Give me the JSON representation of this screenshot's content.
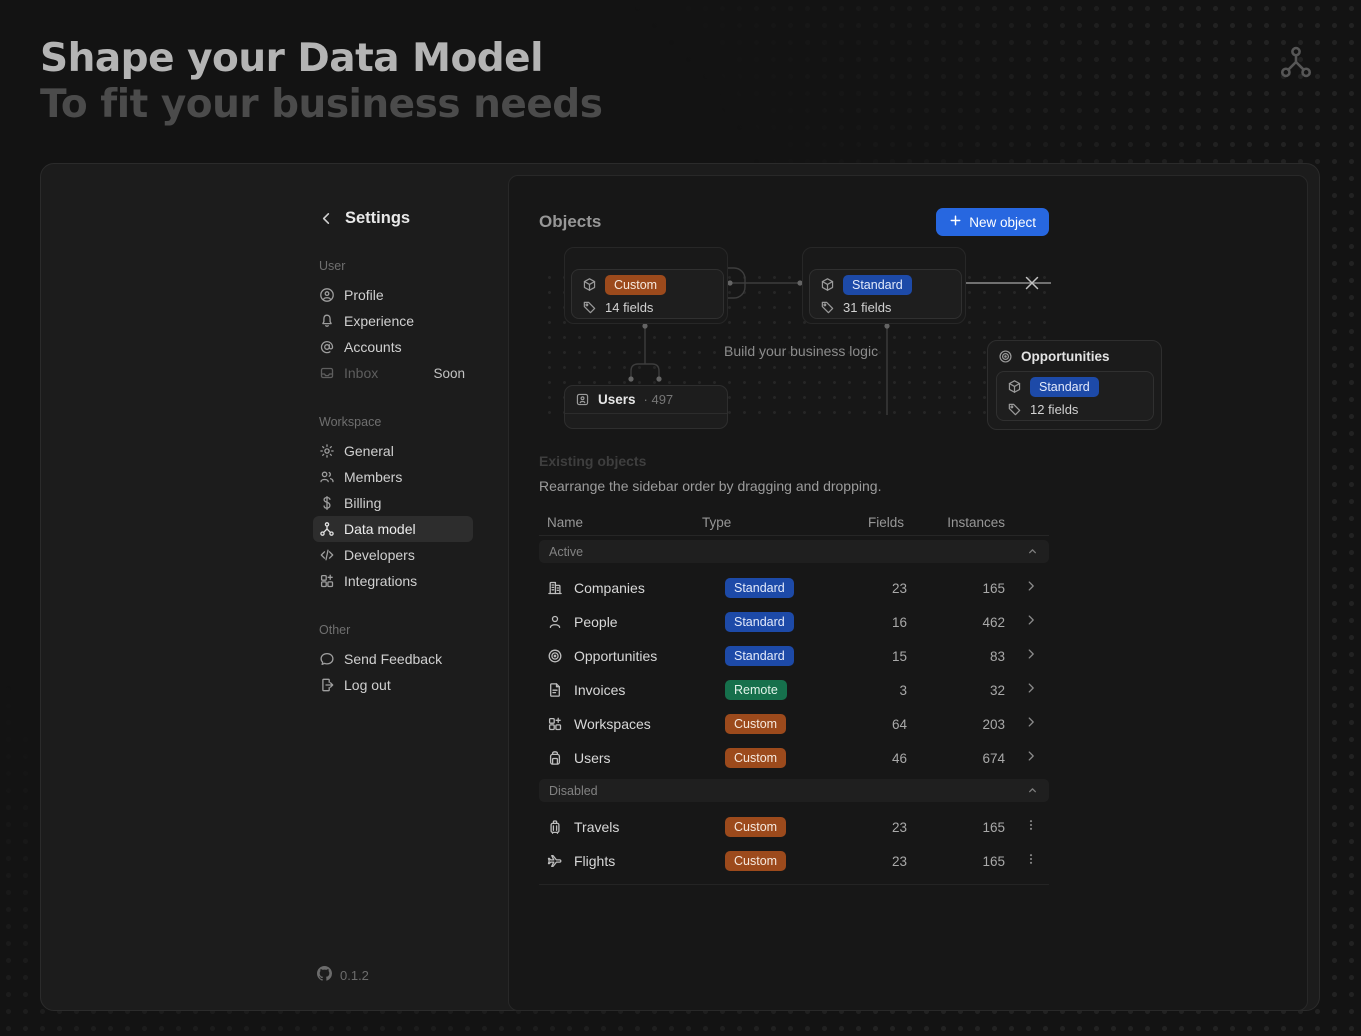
{
  "header": {
    "title": "Shape your Data Model",
    "subtitle": "To fit your business needs"
  },
  "sidebar": {
    "back": {
      "label": "Settings"
    },
    "sections": [
      {
        "label": "User",
        "items": [
          {
            "icon": "profile",
            "label": "Profile"
          },
          {
            "icon": "bell",
            "label": "Experience"
          },
          {
            "icon": "at-sign",
            "label": "Accounts"
          },
          {
            "icon": "inbox",
            "label": "Inbox",
            "badge": "Soon",
            "disabled": true
          }
        ]
      },
      {
        "label": "Workspace",
        "items": [
          {
            "icon": "gear",
            "label": "General"
          },
          {
            "icon": "members",
            "label": "Members"
          },
          {
            "icon": "dollar",
            "label": "Billing"
          },
          {
            "icon": "data-model",
            "label": "Data model",
            "active": true
          },
          {
            "icon": "code",
            "label": "Developers"
          },
          {
            "icon": "integrations",
            "label": "Integrations"
          }
        ]
      },
      {
        "label": "Other",
        "items": [
          {
            "icon": "chat",
            "label": "Send Feedback"
          },
          {
            "icon": "logout",
            "label": "Log out"
          }
        ]
      }
    ],
    "version": "0.1.2"
  },
  "main": {
    "title": "Objects",
    "new_object_label": "New object",
    "diagram": {
      "center_text": "Build your business logic",
      "node_custom": {
        "badge": "Custom",
        "fields": "14 fields"
      },
      "node_standard": {
        "badge": "Standard",
        "fields": "31 fields"
      },
      "node_users": {
        "label": "Users",
        "count_display": "· 497"
      },
      "node_opportunities": {
        "title": "Opportunities",
        "badge": "Standard",
        "fields": "12 fields"
      }
    },
    "existing": {
      "heading": "Existing objects",
      "description": "Rearrange the sidebar order by dragging and dropping.",
      "columns": [
        "Name",
        "Type",
        "Fields",
        "Instances"
      ],
      "groups": [
        {
          "label": "Active",
          "rows": [
            {
              "icon": "building",
              "name": "Companies",
              "type": "Standard",
              "fields": "23",
              "instances": "165",
              "action": "chevron-right"
            },
            {
              "icon": "person",
              "name": "People",
              "type": "Standard",
              "fields": "16",
              "instances": "462",
              "action": "chevron-right"
            },
            {
              "icon": "target",
              "name": "Opportunities",
              "type": "Standard",
              "fields": "15",
              "instances": "83",
              "action": "chevron-right"
            },
            {
              "icon": "document",
              "name": "Invoices",
              "type": "Remote",
              "fields": "3",
              "instances": "32",
              "action": "chevron-right"
            },
            {
              "icon": "workspaces",
              "name": "Workspaces",
              "type": "Custom",
              "fields": "64",
              "instances": "203",
              "action": "chevron-right"
            },
            {
              "icon": "backpack",
              "name": "Users",
              "type": "Custom",
              "fields": "46",
              "instances": "674",
              "action": "chevron-right"
            }
          ]
        },
        {
          "label": "Disabled",
          "rows": [
            {
              "icon": "luggage",
              "name": "Travels",
              "type": "Custom",
              "fields": "23",
              "instances": "165",
              "action": "kebab"
            },
            {
              "icon": "plane",
              "name": "Flights",
              "type": "Custom",
              "fields": "23",
              "instances": "165",
              "action": "kebab"
            }
          ]
        }
      ]
    }
  },
  "colors": {
    "accent_blue": "#2767e0",
    "badge_standard_bg": "#1d4aa8",
    "badge_remote_bg": "#16704c",
    "badge_custom_bg": "#9c4a1c"
  }
}
